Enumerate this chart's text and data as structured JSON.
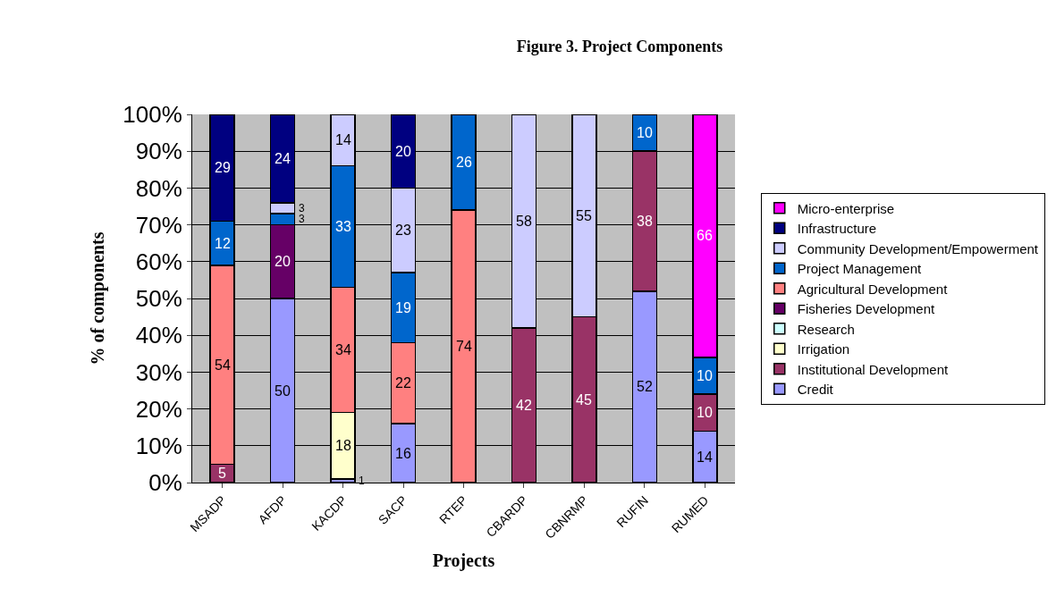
{
  "chart_data": {
    "type": "bar",
    "stacked": true,
    "title": "Figure 3. Project Components",
    "xlabel": "Projects",
    "ylabel": "% of components",
    "categories": [
      "MSADP",
      "AFDP",
      "KACDP",
      "SACP",
      "RTEP",
      "CBARDP",
      "CBNRMP",
      "RUFIN",
      "RUMED"
    ],
    "series": [
      {
        "name": "Credit",
        "color": "#9999ff",
        "values": [
          null,
          50,
          1,
          16,
          null,
          null,
          null,
          52,
          14
        ]
      },
      {
        "name": "Institutional Development",
        "color": "#993366",
        "values": [
          5,
          null,
          null,
          null,
          null,
          42,
          45,
          38,
          10
        ]
      },
      {
        "name": "Irrigation",
        "color": "#ffffcc",
        "values": [
          null,
          null,
          18,
          null,
          null,
          null,
          null,
          null,
          null
        ]
      },
      {
        "name": "Research",
        "color": "#ccffff",
        "values": [
          null,
          null,
          null,
          null,
          null,
          null,
          null,
          null,
          null
        ]
      },
      {
        "name": "Fisheries Development",
        "color": "#660066",
        "values": [
          null,
          20,
          null,
          null,
          null,
          null,
          null,
          null,
          null
        ]
      },
      {
        "name": "Agricultural Development",
        "color": "#ff8080",
        "values": [
          54,
          null,
          34,
          22,
          74,
          null,
          null,
          null,
          null
        ]
      },
      {
        "name": "Project Management",
        "color": "#0066cc",
        "values": [
          12,
          3,
          33,
          19,
          26,
          null,
          null,
          10,
          10
        ]
      },
      {
        "name": "Community Development/Empowerment",
        "color": "#ccccff",
        "values": [
          null,
          3,
          14,
          23,
          null,
          58,
          55,
          null,
          null
        ]
      },
      {
        "name": "Infrastructure",
        "color": "#000080",
        "values": [
          29,
          24,
          null,
          20,
          null,
          null,
          null,
          null,
          null
        ]
      },
      {
        "name": "Micro-enterprise",
        "color": "#ff00ff",
        "values": [
          null,
          null,
          null,
          null,
          null,
          null,
          null,
          null,
          66
        ]
      }
    ],
    "ylim": [
      0,
      100
    ],
    "yticks": [
      {
        "value": 0,
        "label": "0%"
      },
      {
        "value": 10,
        "label": "10%"
      },
      {
        "value": 20,
        "label": "20%"
      },
      {
        "value": 30,
        "label": "30%"
      },
      {
        "value": 40,
        "label": "40%"
      },
      {
        "value": 50,
        "label": "50%"
      },
      {
        "value": 60,
        "label": "60%"
      },
      {
        "value": 70,
        "label": "70%"
      },
      {
        "value": 80,
        "label": "80%"
      },
      {
        "value": 90,
        "label": "90%"
      },
      {
        "value": 100,
        "label": "100%"
      }
    ],
    "grid": "y",
    "legend": "right",
    "data_labels": true
  }
}
